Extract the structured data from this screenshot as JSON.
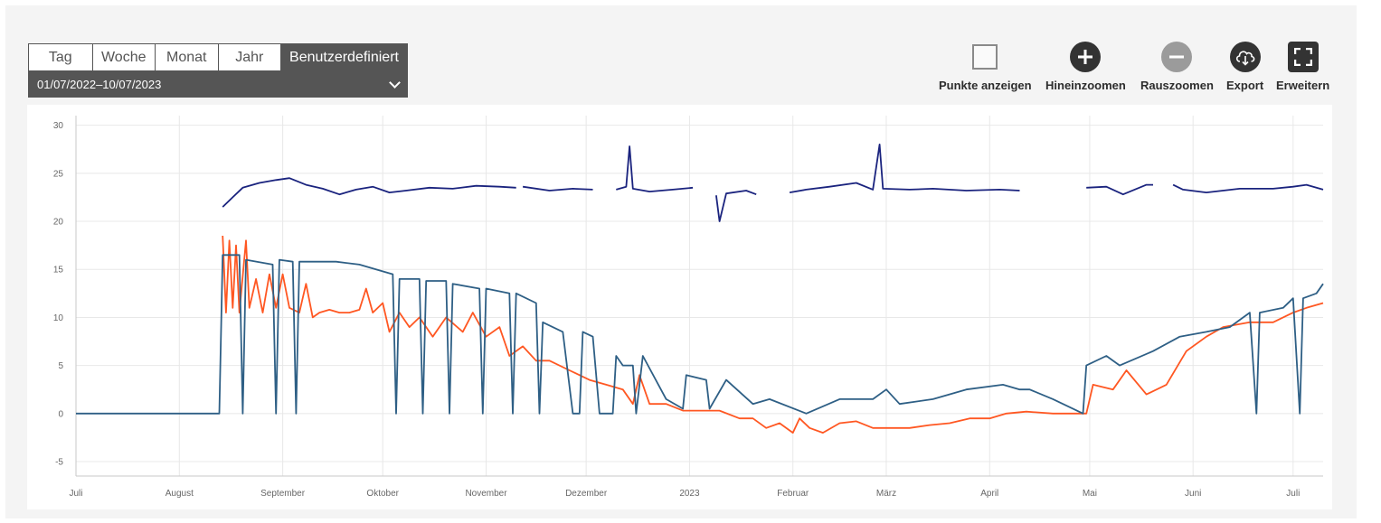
{
  "range_selector": {
    "tabs": [
      {
        "label": "Tag",
        "active": false
      },
      {
        "label": "Woche",
        "active": false
      },
      {
        "label": "Monat",
        "active": false
      },
      {
        "label": "Jahr",
        "active": false
      },
      {
        "label": "Benutzerdefiniert",
        "active": true
      }
    ],
    "date_range": "01/07/2022–10/07/2023"
  },
  "toolbar": {
    "points_label": "Punkte anzeigen",
    "zoom_in_label": "Hineinzoomen",
    "zoom_out_label": "Rauszoomen",
    "export_label": "Export",
    "expand_label": "Erweitern",
    "icons": [
      "checkbox",
      "plus-icon",
      "minus-icon",
      "cloud-download-icon",
      "expand-icon"
    ]
  },
  "chart_data": {
    "type": "line",
    "x_tick_labels": [
      "Juli",
      "August",
      "September",
      "Oktober",
      "November",
      "Dezember",
      "2023",
      "Februar",
      "März",
      "April",
      "Mai",
      "Juni",
      "Juli"
    ],
    "x_ticks": [
      "2022-07-01",
      "2022-08-01",
      "2022-09-01",
      "2022-10-01",
      "2022-11-01",
      "2022-12-01",
      "2023-01-01",
      "2023-02-01",
      "2023-03-01",
      "2023-04-01",
      "2023-05-01",
      "2023-06-01",
      "2023-07-01"
    ],
    "x_range": [
      "2022-07-01",
      "2023-07-10"
    ],
    "y_ticks": [
      -5,
      0,
      5,
      10,
      15,
      20,
      25,
      30
    ],
    "ylim": [
      -6.5,
      31
    ],
    "grid": true,
    "series": [
      {
        "color": "#1a237e",
        "points": [
          [
            "2022-08-14",
            21.5
          ],
          [
            "2022-08-17",
            22.5
          ],
          [
            "2022-08-20",
            23.5
          ],
          [
            "2022-08-25",
            24.0
          ],
          [
            "2022-08-30",
            24.3
          ],
          [
            "2022-09-03",
            24.5
          ],
          [
            "2022-09-08",
            23.8
          ],
          [
            "2022-09-13",
            23.4
          ],
          [
            "2022-09-18",
            22.8
          ],
          [
            "2022-09-23",
            23.3
          ],
          [
            "2022-09-28",
            23.6
          ],
          [
            "2022-10-03",
            23.0
          ],
          [
            "2022-10-08",
            23.2
          ],
          [
            "2022-10-15",
            23.5
          ],
          [
            "2022-10-22",
            23.4
          ],
          [
            "2022-10-29",
            23.7
          ],
          [
            "2022-11-05",
            23.6
          ],
          [
            "2022-11-10",
            23.5
          ],
          null,
          [
            "2022-11-12",
            23.6
          ],
          [
            "2022-11-20",
            23.2
          ],
          [
            "2022-11-27",
            23.4
          ],
          [
            "2022-12-03",
            23.3
          ],
          null,
          [
            "2022-12-10",
            23.3
          ],
          [
            "2022-12-13",
            23.6
          ],
          [
            "2022-12-14",
            27.8
          ],
          [
            "2022-12-15",
            23.4
          ],
          [
            "2022-12-20",
            23.1
          ],
          [
            "2022-12-27",
            23.3
          ],
          [
            "2023-01-02",
            23.5
          ],
          null,
          [
            "2023-01-09",
            22.7
          ],
          [
            "2023-01-10",
            20.0
          ],
          [
            "2023-01-12",
            22.9
          ],
          [
            "2023-01-18",
            23.2
          ],
          [
            "2023-01-21",
            22.8
          ],
          null,
          [
            "2023-01-26",
            22.0
          ],
          null,
          [
            "2023-01-31",
            23.0
          ],
          [
            "2023-02-05",
            23.3
          ],
          [
            "2023-02-12",
            23.6
          ],
          [
            "2023-02-20",
            24.0
          ],
          [
            "2023-02-25",
            23.3
          ],
          [
            "2023-02-27",
            28.0
          ],
          [
            "2023-02-28",
            23.4
          ],
          [
            "2023-03-08",
            23.3
          ],
          [
            "2023-03-15",
            23.4
          ],
          [
            "2023-03-25",
            23.2
          ],
          [
            "2023-04-04",
            23.3
          ],
          [
            "2023-04-10",
            23.2
          ],
          null,
          [
            "2023-04-13",
            23.3
          ],
          null,
          [
            "2023-04-30",
            23.5
          ],
          [
            "2023-05-06",
            23.6
          ],
          [
            "2023-05-11",
            22.8
          ],
          [
            "2023-05-18",
            23.8
          ],
          [
            "2023-05-20",
            23.8
          ],
          null,
          [
            "2023-05-26",
            23.8
          ],
          [
            "2023-05-29",
            23.3
          ],
          [
            "2023-06-05",
            23.0
          ],
          [
            "2023-06-15",
            23.4
          ],
          [
            "2023-06-25",
            23.4
          ],
          [
            "2023-07-01",
            23.6
          ],
          [
            "2023-07-05",
            23.8
          ],
          [
            "2023-07-10",
            23.3
          ]
        ]
      },
      {
        "color": "#ff5722",
        "points": [
          [
            "2022-08-14",
            18.5
          ],
          [
            "2022-08-15",
            10.5
          ],
          [
            "2022-08-16",
            18.0
          ],
          [
            "2022-08-17",
            11.0
          ],
          [
            "2022-08-18",
            17.5
          ],
          [
            "2022-08-19",
            10.5
          ],
          [
            "2022-08-21",
            18.0
          ],
          [
            "2022-08-22",
            11.0
          ],
          [
            "2022-08-24",
            14.0
          ],
          [
            "2022-08-26",
            10.5
          ],
          [
            "2022-08-28",
            14.5
          ],
          [
            "2022-08-30",
            11.0
          ],
          [
            "2022-09-01",
            14.5
          ],
          [
            "2022-09-03",
            11.0
          ],
          [
            "2022-09-06",
            10.5
          ],
          [
            "2022-09-08",
            13.5
          ],
          [
            "2022-09-10",
            10.0
          ],
          [
            "2022-09-12",
            10.5
          ],
          [
            "2022-09-15",
            10.8
          ],
          [
            "2022-09-18",
            10.5
          ],
          [
            "2022-09-21",
            10.5
          ],
          [
            "2022-09-24",
            10.8
          ],
          [
            "2022-09-26",
            13.0
          ],
          [
            "2022-09-28",
            10.5
          ],
          [
            "2022-10-01",
            11.5
          ],
          [
            "2022-10-03",
            8.5
          ],
          [
            "2022-10-06",
            10.5
          ],
          [
            "2022-10-09",
            9.0
          ],
          [
            "2022-10-12",
            10.0
          ],
          [
            "2022-10-16",
            8.0
          ],
          [
            "2022-10-20",
            10.0
          ],
          [
            "2022-10-25",
            8.5
          ],
          [
            "2022-10-28",
            10.5
          ],
          [
            "2022-11-01",
            8.0
          ],
          [
            "2022-11-05",
            9.0
          ],
          [
            "2022-11-08",
            6.0
          ],
          [
            "2022-11-12",
            7.0
          ],
          [
            "2022-11-16",
            5.5
          ],
          [
            "2022-11-20",
            5.5
          ],
          [
            "2022-11-26",
            4.5
          ],
          [
            "2022-12-02",
            3.5
          ],
          [
            "2022-12-07",
            3.0
          ],
          [
            "2022-12-12",
            2.5
          ],
          [
            "2022-12-15",
            1.0
          ],
          [
            "2022-12-17",
            4.0
          ],
          [
            "2022-12-20",
            1.0
          ],
          [
            "2022-12-25",
            1.0
          ],
          [
            "2022-12-30",
            0.3
          ],
          [
            "2023-01-05",
            0.3
          ],
          [
            "2023-01-10",
            0.3
          ],
          [
            "2023-01-16",
            -0.5
          ],
          [
            "2023-01-20",
            -0.5
          ],
          [
            "2023-01-24",
            -1.5
          ],
          [
            "2023-01-28",
            -1.0
          ],
          [
            "2023-02-01",
            -2.0
          ],
          [
            "2023-02-03",
            -0.5
          ],
          [
            "2023-02-06",
            -1.5
          ],
          [
            "2023-02-10",
            -2.0
          ],
          [
            "2023-02-15",
            -1.0
          ],
          [
            "2023-02-20",
            -0.8
          ],
          [
            "2023-02-25",
            -1.5
          ],
          [
            "2023-03-02",
            -1.5
          ],
          [
            "2023-03-08",
            -1.5
          ],
          [
            "2023-03-14",
            -1.2
          ],
          [
            "2023-03-20",
            -1.0
          ],
          [
            "2023-03-26",
            -0.5
          ],
          [
            "2023-04-01",
            -0.5
          ],
          [
            "2023-04-06",
            0.0
          ],
          [
            "2023-04-12",
            0.2
          ],
          [
            "2023-04-20",
            0.0
          ],
          [
            "2023-04-30",
            0.0
          ],
          [
            "2023-05-02",
            3.0
          ],
          [
            "2023-05-08",
            2.5
          ],
          [
            "2023-05-12",
            4.5
          ],
          [
            "2023-05-18",
            2.0
          ],
          [
            "2023-05-24",
            3.0
          ],
          [
            "2023-05-30",
            6.5
          ],
          [
            "2023-06-05",
            8.0
          ],
          [
            "2023-06-10",
            9.0
          ],
          [
            "2023-06-18",
            9.5
          ],
          [
            "2023-06-25",
            9.5
          ],
          [
            "2023-07-01",
            10.5
          ],
          [
            "2023-07-05",
            11.0
          ],
          [
            "2023-07-10",
            11.5
          ]
        ]
      },
      {
        "color": "#2e5f85",
        "points": [
          [
            "2022-07-01",
            0.0
          ],
          [
            "2022-08-13",
            0.0
          ],
          [
            "2022-08-14",
            16.5
          ],
          [
            "2022-08-19",
            16.5
          ],
          [
            "2022-08-20",
            0.0
          ],
          [
            "2022-08-21",
            16.0
          ],
          [
            "2022-08-29",
            15.5
          ],
          [
            "2022-08-30",
            0.0
          ],
          [
            "2022-08-31",
            16.0
          ],
          [
            "2022-09-04",
            15.8
          ],
          [
            "2022-09-05",
            0.0
          ],
          [
            "2022-09-06",
            15.8
          ],
          [
            "2022-09-17",
            15.8
          ],
          [
            "2022-09-24",
            15.5
          ],
          [
            "2022-09-29",
            15.0
          ],
          [
            "2022-10-04",
            14.5
          ],
          [
            "2022-10-05",
            0.0
          ],
          [
            "2022-10-06",
            14.0
          ],
          [
            "2022-10-12",
            14.0
          ],
          [
            "2022-10-13",
            0.0
          ],
          [
            "2022-10-14",
            13.8
          ],
          [
            "2022-10-20",
            13.8
          ],
          [
            "2022-10-21",
            0.0
          ],
          [
            "2022-10-22",
            13.5
          ],
          [
            "2022-10-30",
            13.0
          ],
          [
            "2022-10-31",
            0.0
          ],
          [
            "2022-11-01",
            13.0
          ],
          [
            "2022-11-08",
            12.5
          ],
          [
            "2022-11-09",
            0.0
          ],
          [
            "2022-11-10",
            12.5
          ],
          [
            "2022-11-16",
            11.5
          ],
          [
            "2022-11-17",
            0.0
          ],
          [
            "2022-11-18",
            9.5
          ],
          [
            "2022-11-24",
            8.5
          ],
          [
            "2022-11-27",
            0.0
          ],
          [
            "2022-11-29",
            0.0
          ],
          [
            "2022-11-30",
            8.5
          ],
          [
            "2022-12-03",
            8.0
          ],
          [
            "2022-12-05",
            0.0
          ],
          [
            "2022-12-09",
            0.0
          ],
          [
            "2022-12-10",
            6.0
          ],
          [
            "2022-12-12",
            5.0
          ],
          [
            "2022-12-15",
            5.0
          ],
          [
            "2022-12-16",
            0.0
          ],
          [
            "2022-12-18",
            6.0
          ],
          [
            "2022-12-25",
            1.5
          ],
          [
            "2022-12-30",
            0.5
          ],
          [
            "2022-12-31",
            4.0
          ],
          [
            "2023-01-06",
            3.5
          ],
          [
            "2023-01-07",
            0.5
          ],
          [
            "2023-01-12",
            3.5
          ],
          [
            "2023-01-20",
            1.0
          ],
          [
            "2023-01-25",
            1.5
          ],
          [
            "2023-02-05",
            0.0
          ],
          [
            "2023-02-15",
            1.5
          ],
          [
            "2023-02-25",
            1.5
          ],
          [
            "2023-03-01",
            2.5
          ],
          [
            "2023-03-05",
            1.0
          ],
          [
            "2023-03-15",
            1.5
          ],
          [
            "2023-03-25",
            2.5
          ],
          [
            "2023-04-05",
            3.0
          ],
          [
            "2023-04-10",
            2.5
          ],
          [
            "2023-04-13",
            2.5
          ],
          [
            "2023-04-20",
            1.5
          ],
          [
            "2023-04-29",
            0.0
          ],
          [
            "2023-04-30",
            5.0
          ],
          [
            "2023-05-06",
            6.0
          ],
          [
            "2023-05-10",
            5.0
          ],
          [
            "2023-05-20",
            6.5
          ],
          [
            "2023-05-28",
            8.0
          ],
          [
            "2023-06-05",
            8.5
          ],
          [
            "2023-06-12",
            9.0
          ],
          [
            "2023-06-18",
            10.5
          ],
          [
            "2023-06-20",
            0.0
          ],
          [
            "2023-06-21",
            10.5
          ],
          [
            "2023-06-28",
            11.0
          ],
          [
            "2023-07-01",
            12.0
          ],
          [
            "2023-07-03",
            0.0
          ],
          [
            "2023-07-04",
            12.0
          ],
          [
            "2023-07-08",
            12.5
          ],
          [
            "2023-07-10",
            13.5
          ]
        ]
      }
    ]
  }
}
